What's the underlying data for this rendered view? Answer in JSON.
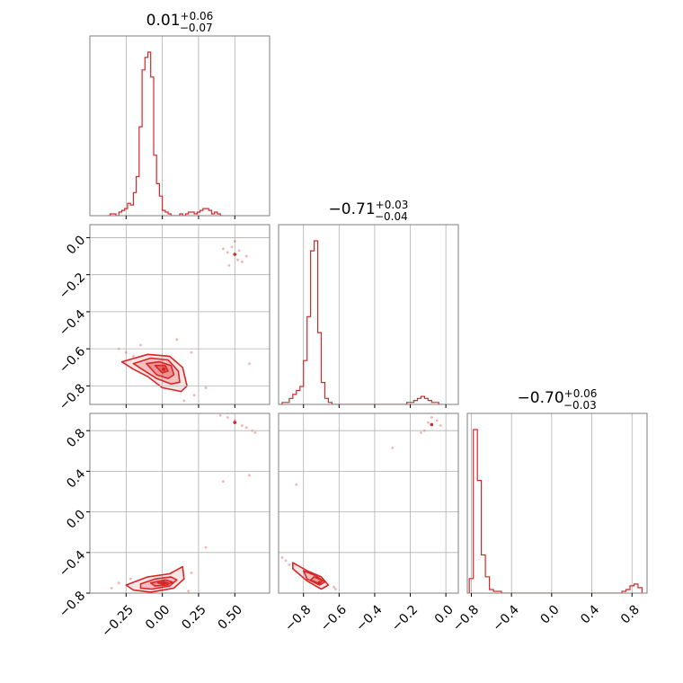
{
  "chart_data": {
    "type": "corner",
    "color": "#d62728",
    "grid": true,
    "panels": [
      {
        "id": "hist-0",
        "kind": "hist",
        "row": 0,
        "col": 0,
        "title": {
          "main": "0.01",
          "sup": "+0.06",
          "sub": "−0.07"
        },
        "xlim": [
          -0.5,
          0.74
        ],
        "bins": {
          "start": -0.38,
          "width": 0.02,
          "counts": [
            0,
            1,
            1,
            0,
            2,
            3,
            4,
            7,
            6,
            13,
            22,
            50,
            82,
            89,
            92,
            78,
            34,
            18,
            11,
            3,
            2,
            1,
            0,
            0,
            0,
            1,
            0,
            1,
            2,
            2,
            1,
            2,
            3,
            4,
            4,
            3,
            1,
            2,
            1,
            0
          ]
        }
      },
      {
        "id": "hist-1",
        "kind": "hist",
        "row": 1,
        "col": 1,
        "title": {
          "main": "−0.71",
          "sup": "+0.03",
          "sub": "−0.04"
        },
        "xlim": [
          -0.94,
          0.07
        ],
        "bins": {
          "start": -0.94,
          "width": 0.02,
          "counts": [
            0,
            1,
            1,
            3,
            5,
            7,
            9,
            22,
            44,
            77,
            82,
            36,
            11,
            3,
            1,
            0,
            0,
            0,
            0,
            0,
            0,
            0,
            0,
            0,
            0,
            0,
            0,
            0,
            0,
            0,
            0,
            0,
            0,
            0,
            0,
            0,
            1,
            1,
            2,
            3,
            4,
            3,
            2,
            1,
            1,
            0
          ]
        }
      },
      {
        "id": "hist-2",
        "kind": "hist",
        "row": 2,
        "col": 2,
        "title": {
          "main": "−0.70",
          "sup": "+0.06",
          "sub": "−0.03"
        },
        "xlim": [
          -0.84,
          0.95
        ],
        "bins": {
          "start": -0.82,
          "width": 0.04,
          "counts": [
            8,
            90,
            62,
            21,
            9,
            2,
            1,
            1,
            0,
            0,
            0,
            0,
            0,
            0,
            0,
            0,
            0,
            0,
            0,
            0,
            0,
            0,
            0,
            0,
            0,
            0,
            0,
            0,
            0,
            0,
            0,
            0,
            0,
            0,
            0,
            0,
            0,
            0,
            1,
            2,
            4,
            5,
            3
          ]
        }
      },
      {
        "id": "scatter-1-0",
        "kind": "2d",
        "row": 1,
        "col": 0,
        "xlim": [
          -0.5,
          0.74
        ],
        "ylim": [
          -0.9,
          0.07
        ],
        "mode": {
          "x": 0.01,
          "y": -0.71
        },
        "secondary": {
          "x": 0.5,
          "y": -0.09
        },
        "contours": [
          [
            [
              -0.28,
              -0.67
            ],
            [
              -0.1,
              -0.63
            ],
            [
              0.05,
              -0.64
            ],
            [
              0.14,
              -0.7
            ],
            [
              0.17,
              -0.8
            ],
            [
              0.13,
              -0.83
            ],
            [
              0.0,
              -0.81
            ],
            [
              -0.1,
              -0.75
            ],
            [
              -0.2,
              -0.71
            ]
          ],
          [
            [
              -0.2,
              -0.68
            ],
            [
              -0.08,
              -0.65
            ],
            [
              0.04,
              -0.66
            ],
            [
              0.11,
              -0.72
            ],
            [
              0.12,
              -0.78
            ],
            [
              0.06,
              -0.79
            ],
            [
              -0.04,
              -0.76
            ],
            [
              -0.12,
              -0.72
            ]
          ],
          [
            [
              -0.11,
              -0.68
            ],
            [
              -0.02,
              -0.67
            ],
            [
              0.06,
              -0.69
            ],
            [
              0.08,
              -0.74
            ],
            [
              0.04,
              -0.76
            ],
            [
              -0.04,
              -0.74
            ]
          ],
          [
            [
              -0.05,
              -0.69
            ],
            [
              0.02,
              -0.69
            ],
            [
              0.04,
              -0.72
            ],
            [
              0.0,
              -0.73
            ]
          ]
        ],
        "scatter": [
          [
            -0.25,
            -0.62
          ],
          [
            -0.2,
            -0.64
          ],
          [
            0.2,
            -0.62
          ],
          [
            0.22,
            -0.85
          ],
          [
            -0.3,
            -0.6
          ],
          [
            0.15,
            -0.88
          ],
          [
            0.3,
            -0.81
          ],
          [
            0.1,
            -0.55
          ],
          [
            -0.15,
            -0.58
          ],
          [
            0.45,
            -0.08
          ],
          [
            0.52,
            -0.12
          ],
          [
            0.48,
            -0.05
          ],
          [
            0.55,
            -0.13
          ],
          [
            0.42,
            -0.06
          ],
          [
            0.5,
            -0.02
          ],
          [
            0.58,
            -0.1
          ],
          [
            0.46,
            -0.15
          ],
          [
            0.53,
            -0.07
          ],
          [
            0.6,
            -0.68
          ]
        ]
      },
      {
        "id": "scatter-2-0",
        "kind": "2d",
        "row": 2,
        "col": 0,
        "xlim": [
          -0.5,
          0.74
        ],
        "ylim": [
          -0.8,
          0.97
        ],
        "mode": {
          "x": 0.01,
          "y": -0.7
        },
        "secondary": {
          "x": 0.5,
          "y": 0.88
        },
        "contours": [
          [
            [
              -0.25,
              -0.72
            ],
            [
              -0.1,
              -0.64
            ],
            [
              0.05,
              -0.61
            ],
            [
              0.14,
              -0.54
            ],
            [
              0.15,
              -0.66
            ],
            [
              0.08,
              -0.75
            ],
            [
              -0.08,
              -0.79
            ],
            [
              -0.2,
              -0.77
            ]
          ],
          [
            [
              -0.15,
              -0.71
            ],
            [
              -0.05,
              -0.66
            ],
            [
              0.06,
              -0.64
            ],
            [
              0.1,
              -0.67
            ],
            [
              0.05,
              -0.73
            ],
            [
              -0.07,
              -0.76
            ],
            [
              -0.15,
              -0.75
            ]
          ],
          [
            [
              -0.08,
              -0.7
            ],
            [
              0.02,
              -0.67
            ],
            [
              0.07,
              -0.69
            ],
            [
              0.03,
              -0.72
            ],
            [
              -0.05,
              -0.73
            ]
          ],
          [
            [
              -0.03,
              -0.7
            ],
            [
              0.02,
              -0.69
            ],
            [
              0.04,
              -0.7
            ],
            [
              0.0,
              -0.71
            ]
          ]
        ],
        "scatter": [
          [
            -0.3,
            -0.7
          ],
          [
            -0.22,
            -0.66
          ],
          [
            0.2,
            -0.6
          ],
          [
            0.18,
            -0.78
          ],
          [
            -0.35,
            -0.75
          ],
          [
            0.3,
            -0.35
          ],
          [
            0.45,
            0.93
          ],
          [
            0.55,
            0.85
          ],
          [
            0.62,
            0.8
          ],
          [
            0.4,
            0.95
          ],
          [
            0.58,
            0.83
          ],
          [
            0.5,
            0.9
          ],
          [
            0.64,
            0.78
          ],
          [
            0.6,
            0.36
          ],
          [
            0.42,
            0.3
          ]
        ]
      },
      {
        "id": "scatter-2-1",
        "kind": "2d",
        "row": 2,
        "col": 1,
        "xlim": [
          -0.94,
          0.07
        ],
        "ylim": [
          -0.8,
          0.97
        ],
        "mode": {
          "x": -0.71,
          "y": -0.7
        },
        "secondary": {
          "x": -0.08,
          "y": 0.86
        },
        "contours": [
          [
            [
              -0.86,
              -0.5
            ],
            [
              -0.78,
              -0.58
            ],
            [
              -0.7,
              -0.64
            ],
            [
              -0.66,
              -0.72
            ],
            [
              -0.7,
              -0.76
            ],
            [
              -0.78,
              -0.68
            ],
            [
              -0.86,
              -0.56
            ]
          ],
          [
            [
              -0.8,
              -0.58
            ],
            [
              -0.73,
              -0.63
            ],
            [
              -0.68,
              -0.69
            ],
            [
              -0.71,
              -0.72
            ],
            [
              -0.78,
              -0.66
            ]
          ],
          [
            [
              -0.74,
              -0.64
            ],
            [
              -0.69,
              -0.68
            ],
            [
              -0.72,
              -0.7
            ],
            [
              -0.76,
              -0.67
            ]
          ]
        ],
        "scatter": [
          [
            -0.92,
            -0.45
          ],
          [
            -0.9,
            -0.48
          ],
          [
            -0.88,
            -0.52
          ],
          [
            -0.62,
            -0.76
          ],
          [
            -0.63,
            -0.74
          ],
          [
            -0.12,
            0.8
          ],
          [
            -0.05,
            0.9
          ],
          [
            -0.1,
            0.88
          ],
          [
            -0.03,
            0.85
          ],
          [
            -0.14,
            0.78
          ],
          [
            -0.08,
            0.93
          ],
          [
            -0.3,
            0.63
          ],
          [
            -0.84,
            0.27
          ]
        ]
      }
    ],
    "axes": {
      "x": [
        {
          "col": 0,
          "ticks": [
            -0.25,
            0.0,
            0.25,
            0.5
          ],
          "labels": [
            "−0.25",
            "0.00",
            "0.25",
            "0.50"
          ]
        },
        {
          "col": 1,
          "ticks": [
            -0.8,
            -0.6,
            -0.4,
            -0.2,
            0.0
          ],
          "labels": [
            "−0.8",
            "−0.6",
            "−0.4",
            "−0.2",
            "0.0"
          ]
        },
        {
          "col": 2,
          "ticks": [
            -0.8,
            -0.4,
            0.0,
            0.4,
            0.8
          ],
          "labels": [
            "−0.8",
            "−0.4",
            "0.0",
            "0.4",
            "0.8"
          ]
        }
      ],
      "y": [
        {
          "row": 1,
          "ticks": [
            0.0,
            -0.2,
            -0.4,
            -0.6,
            -0.8
          ],
          "labels": [
            "0.0",
            "−0.2",
            "−0.4",
            "−0.6",
            "−0.8"
          ]
        },
        {
          "row": 2,
          "ticks": [
            0.8,
            0.4,
            0.0,
            -0.4,
            -0.8
          ],
          "labels": [
            "0.8",
            "0.4",
            "0.0",
            "−0.4",
            "−0.8"
          ]
        }
      ]
    }
  }
}
